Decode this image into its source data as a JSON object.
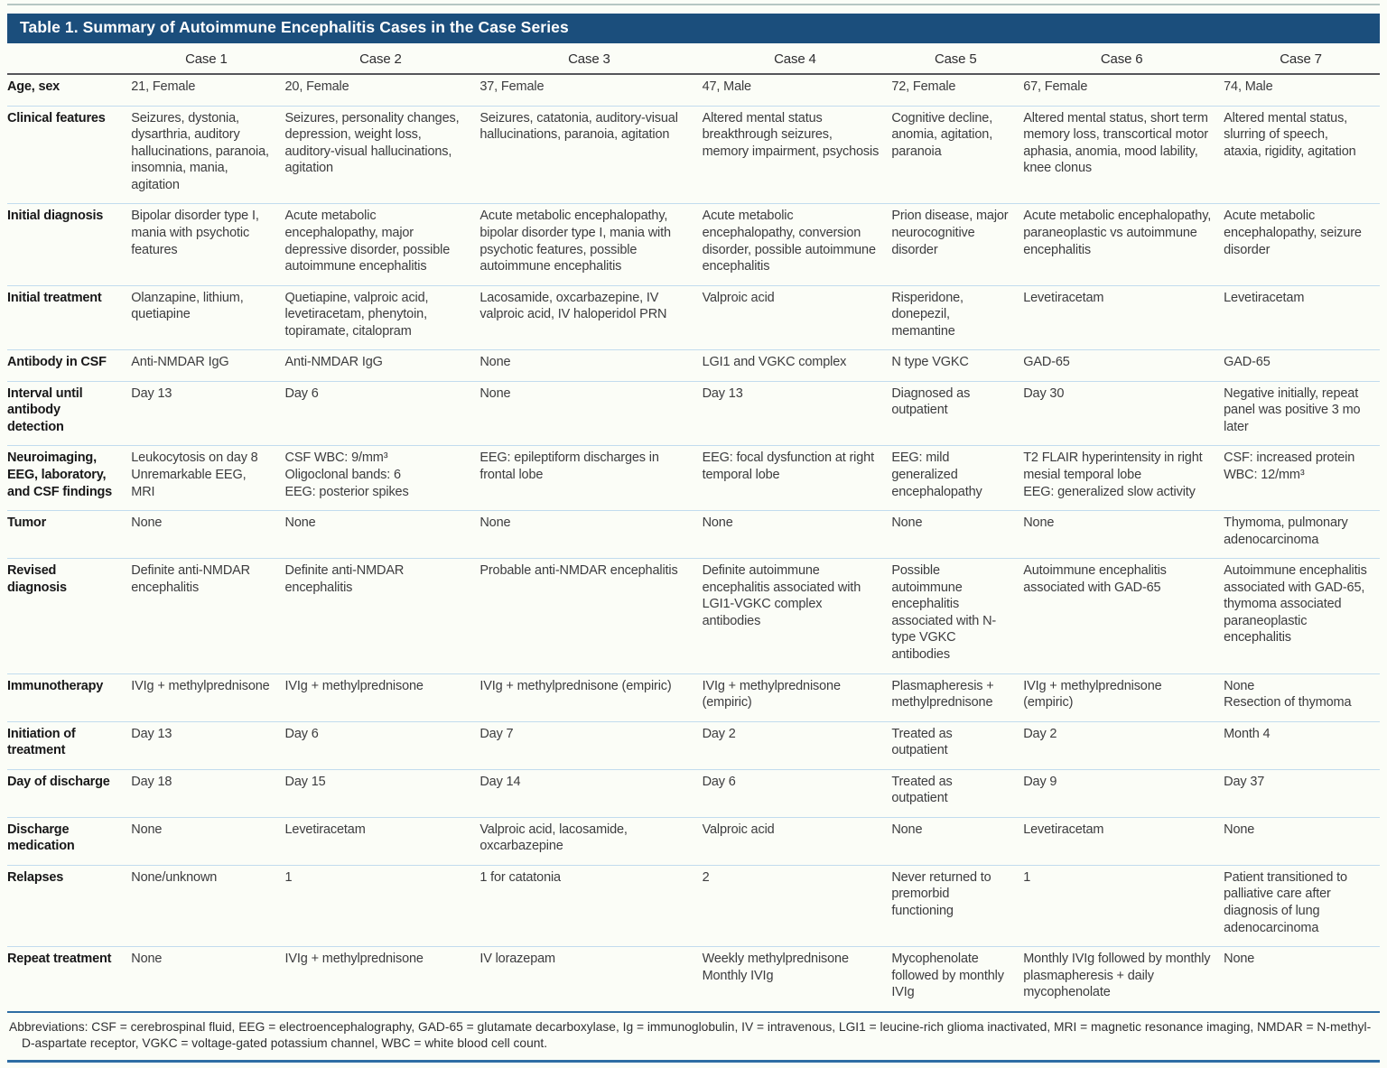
{
  "title": "Table 1. Summary of Autoimmune Encephalitis Cases in the Case Series",
  "colors": {
    "title-bar": "#1b4e7c",
    "page-bg": "#fbfdf7",
    "blue-rule": "#2e6da3",
    "header-rule": "#55565a",
    "row-rule": "#c2dcee",
    "top-rule": "#b6c6c3",
    "body-text": "#3c3c3e"
  },
  "table": {
    "columns": [
      "",
      "Case 1",
      "Case 2",
      "Case 3",
      "Case 4",
      "Case 5",
      "Case 6",
      "Case 7"
    ],
    "rows": [
      {
        "label": "Age, sex",
        "cells": [
          "21, Female",
          "20, Female",
          "37, Female",
          "47, Male",
          "72, Female",
          "67, Female",
          "74, Male"
        ]
      },
      {
        "label": "Clinical features",
        "cells": [
          "Seizures, dystonia, dysarthria, auditory hallucinations, paranoia, insomnia, mania, agitation",
          "Seizures, personality changes, depression, weight loss, auditory-visual hallucinations, agitation",
          "Seizures, catatonia, auditory-visual hallucinations, paranoia, agitation",
          "Altered mental status breakthrough seizures, memory impairment, psychosis",
          "Cognitive decline, anomia, agitation, paranoia",
          "Altered mental status, short term memory loss, transcortical motor aphasia, anomia, mood lability, knee clonus",
          "Altered mental status, slurring of speech, ataxia, rigidity, agitation"
        ]
      },
      {
        "label": "Initial diagnosis",
        "cells": [
          "Bipolar disorder type I, mania with psychotic features",
          "Acute metabolic encephalopathy, major depressive disorder, possible autoimmune encephalitis",
          "Acute metabolic encephalopathy, bipolar disorder type I, mania with psychotic features, possible autoimmune encephalitis",
          "Acute metabolic encephalopathy, conversion disorder, possible autoimmune encephalitis",
          "Prion disease, major neurocognitive disorder",
          "Acute metabolic encephalopathy, paraneoplastic vs autoimmune encephalitis",
          "Acute metabolic encephalopathy, seizure disorder"
        ]
      },
      {
        "label": "Initial treatment",
        "cells": [
          "Olanzapine, lithium, quetiapine",
          "Quetiapine, valproic acid, levetiracetam, phenytoin, topiramate, citalopram",
          "Lacosamide, oxcarbazepine, IV valproic acid, IV haloperidol PRN",
          "Valproic acid",
          "Risperidone, donepezil, memantine",
          "Levetiracetam",
          "Levetiracetam"
        ]
      },
      {
        "label": "Antibody in CSF",
        "cells": [
          "Anti-NMDAR IgG",
          "Anti-NMDAR IgG",
          "None",
          "LGI1 and VGKC complex",
          "N type VGKC",
          "GAD-65",
          "GAD-65"
        ]
      },
      {
        "label": "Interval until antibody detection",
        "cells": [
          "Day 13",
          "Day 6",
          "None",
          "Day 13",
          "Diagnosed as outpatient",
          "Day 30",
          "Negative initially, repeat panel was positive 3 mo later"
        ]
      },
      {
        "label": "Neuroimaging, EEG, laboratory, and CSF findings",
        "cells": [
          "Leukocytosis on day 8\nUnremarkable EEG, MRI",
          "CSF WBC: 9/mm³\nOligoclonal bands: 6\nEEG: posterior spikes",
          "EEG: epileptiform discharges in frontal lobe",
          "EEG: focal dysfunction at right temporal lobe",
          "EEG: mild generalized encephalopathy",
          "T2 FLAIR hyperintensity in right mesial temporal lobe\nEEG: generalized slow activity",
          "CSF: increased protein\nWBC: 12/mm³"
        ]
      },
      {
        "label": "Tumor",
        "cells": [
          "None",
          "None",
          "None",
          "None",
          "None",
          "None",
          "Thymoma, pulmonary adenocarcinoma"
        ]
      },
      {
        "label": "Revised diagnosis",
        "cells": [
          "Definite anti-NMDAR encephalitis",
          "Definite anti-NMDAR encephalitis",
          "Probable anti-NMDAR encephalitis",
          "Definite autoimmune encephalitis associated with LGI1-VGKC complex antibodies",
          "Possible autoimmune encephalitis associated with N-type VGKC antibodies",
          "Autoimmune encephalitis associated with GAD-65",
          "Autoimmune encephalitis associated with GAD-65, thymoma associated paraneoplastic encephalitis"
        ]
      },
      {
        "label": "Immunotherapy",
        "cells": [
          "IVIg + methylprednisone",
          "IVIg + methylprednisone",
          "IVIg + methylprednisone (empiric)",
          "IVIg + methylprednisone (empiric)",
          "Plasmapheresis + methylprednisone",
          "IVIg + methylprednisone (empiric)",
          "None\nResection of thymoma"
        ]
      },
      {
        "label": "Initiation of treatment",
        "cells": [
          "Day 13",
          "Day 6",
          "Day 7",
          "Day 2",
          "Treated as outpatient",
          "Day 2",
          "Month 4"
        ]
      },
      {
        "label": "Day of discharge",
        "cells": [
          "Day 18",
          "Day 15",
          "Day 14",
          "Day 6",
          "Treated as outpatient",
          "Day 9",
          "Day 37"
        ]
      },
      {
        "label": "Discharge medication",
        "cells": [
          "None",
          "Levetiracetam",
          "Valproic acid, lacosamide, oxcarbazepine",
          "Valproic acid",
          "None",
          "Levetiracetam",
          "None"
        ]
      },
      {
        "label": "Relapses",
        "cells": [
          "None/unknown",
          "1",
          "1 for catatonia",
          "2",
          "Never returned to premorbid functioning",
          "1",
          "Patient transitioned to palliative care after diagnosis of lung adenocarcinoma"
        ]
      },
      {
        "label": "Repeat treatment",
        "cells": [
          "None",
          "IVIg + methylprednisone",
          "IV lorazepam",
          "Weekly methylprednisone\nMonthly IVIg",
          "Mycophenolate followed by monthly IVIg",
          "Monthly IVIg followed by monthly plasmapheresis + daily mycophenolate",
          "None"
        ]
      }
    ]
  },
  "footnote": "Abbreviations: CSF = cerebrospinal fluid, EEG = electroencephalography, GAD-65 = glutamate decarboxylase, Ig = immunoglobulin, IV = intravenous, LGI1 = leucine-rich glioma inactivated, MRI = magnetic resonance imaging, NMDAR = N-methyl-D-aspartate receptor, VGKC = voltage-gated potassium channel, WBC = white blood cell count."
}
